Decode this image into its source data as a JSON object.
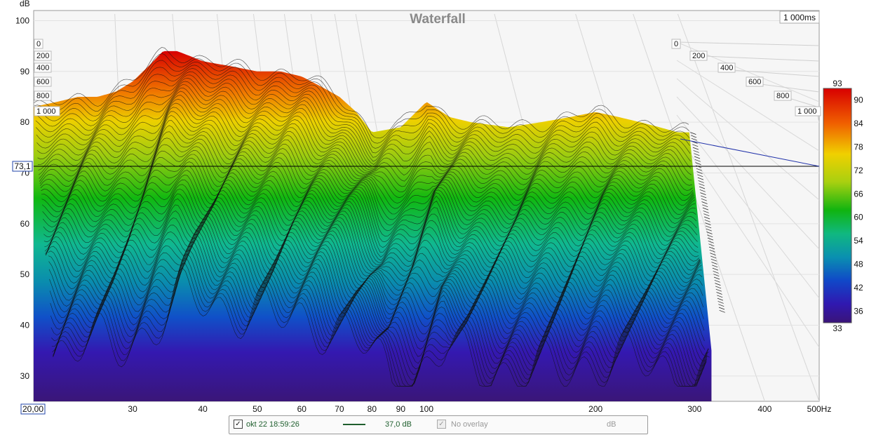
{
  "chart_data": {
    "type": "waterfall",
    "title": "Waterfall",
    "time_window_label": "1 000ms",
    "y_unit": "dB",
    "x_unit": "Hz",
    "x_scale": "log",
    "xlim": [
      20,
      500
    ],
    "ylim": [
      25,
      102
    ],
    "x_ticks": [
      "30",
      "40",
      "50",
      "60",
      "70",
      "80",
      "90",
      "100",
      "200",
      "300",
      "400",
      "500Hz"
    ],
    "x_tick_values": [
      30,
      40,
      50,
      60,
      70,
      80,
      90,
      100,
      200,
      300,
      400,
      500
    ],
    "x_start_readout": "20,00",
    "y_ticks": [
      30,
      40,
      50,
      60,
      70,
      80,
      90,
      100
    ],
    "cursor_readout": "73,1",
    "cursor_value": 73.1,
    "time_ticks_ms": [
      "0",
      "200",
      "400",
      "600",
      "800",
      "1 000"
    ],
    "colorbar": {
      "min_label": "93",
      "max_label": "33",
      "ticks": [
        90,
        84,
        78,
        72,
        66,
        60,
        54,
        48,
        42,
        36
      ],
      "range": [
        33,
        93
      ]
    },
    "series": [
      {
        "name": "okt 22 18:59:26",
        "front_slice_dB": {
          "x": [
            20,
            22,
            24,
            26,
            28,
            30,
            32,
            34,
            36,
            38,
            40,
            45,
            50,
            55,
            60,
            65,
            70,
            75,
            80,
            90,
            100,
            110,
            120,
            140,
            160,
            180,
            200,
            220,
            240,
            260,
            280
          ],
          "y": [
            83,
            84,
            85,
            85,
            86,
            88,
            91,
            94,
            94,
            93,
            92,
            91,
            90,
            90,
            89,
            87,
            85,
            82,
            78,
            79,
            84,
            81,
            80,
            79,
            80,
            81,
            82,
            81,
            80,
            79,
            78
          ]
        },
        "decay_ms": 1000
      }
    ]
  },
  "legend": {
    "series_label": "okt 22 18:59:26",
    "series_checked": "✓",
    "smoothing_label": "37,0 dB",
    "overlay_label": "No overlay",
    "overlay_unit": "dB",
    "line_color": "#1f5f2e"
  },
  "colors": {
    "grid": "#c8c8c8",
    "cursor": "#000000",
    "time_axis_line": "#2233aa"
  }
}
